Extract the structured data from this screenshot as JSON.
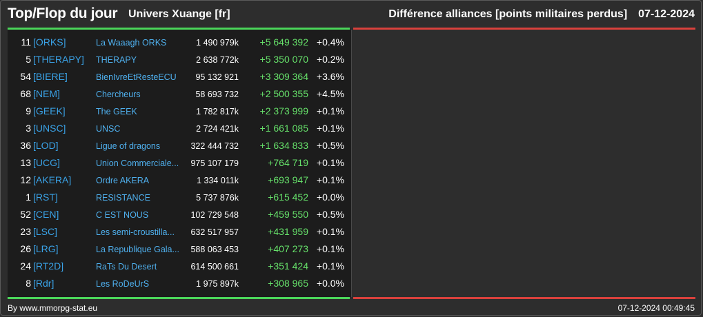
{
  "header": {
    "title": "Top/Flop du jour",
    "universe": "Univers Xuange [fr]",
    "metric": "Différence alliances [points militaires perdus]",
    "date": "07-12-2024"
  },
  "colors": {
    "positive": "#66e06a",
    "tag": "#3aa3e8",
    "top_bar": "#4bd65a",
    "flop_bar": "#d9413c"
  },
  "rows": [
    {
      "rank": "11",
      "tag": "[ORKS]",
      "name": "La Waaagh ORKS",
      "points": "1 490 979k",
      "diff": "+5 649 392",
      "pct": "+0.4%"
    },
    {
      "rank": "5",
      "tag": "[THERAPY]",
      "name": "THERAPY",
      "points": "2 638 772k",
      "diff": "+5 350 070",
      "pct": "+0.2%"
    },
    {
      "rank": "54",
      "tag": "[BIERE]",
      "name": "BienIvreEtResteECU",
      "points": "95 132 921",
      "diff": "+3 309 364",
      "pct": "+3.6%"
    },
    {
      "rank": "68",
      "tag": "[NEM]",
      "name": "Chercheurs",
      "points": "58 693 732",
      "diff": "+2 500 355",
      "pct": "+4.5%"
    },
    {
      "rank": "9",
      "tag": "[GEEK]",
      "name": "The GEEK",
      "points": "1 782 817k",
      "diff": "+2 373 999",
      "pct": "+0.1%"
    },
    {
      "rank": "3",
      "tag": "[UNSC]",
      "name": "UNSC",
      "points": "2 724 421k",
      "diff": "+1 661 085",
      "pct": "+0.1%"
    },
    {
      "rank": "36",
      "tag": "[LOD]",
      "name": "Ligue of dragons",
      "points": "322 444 732",
      "diff": "+1 634 833",
      "pct": "+0.5%"
    },
    {
      "rank": "13",
      "tag": "[UCG]",
      "name": "Union Commerciale...",
      "points": "975 107 179",
      "diff": "+764 719",
      "pct": "+0.1%"
    },
    {
      "rank": "12",
      "tag": "[AKERA]",
      "name": "Ordre AKERA",
      "points": "1 334 011k",
      "diff": "+693 947",
      "pct": "+0.1%"
    },
    {
      "rank": "1",
      "tag": "[RST]",
      "name": "RESISTANCE",
      "points": "5 737 876k",
      "diff": "+615 452",
      "pct": "+0.0%"
    },
    {
      "rank": "52",
      "tag": "[CEN]",
      "name": "C EST NOUS",
      "points": "102 729 548",
      "diff": "+459 550",
      "pct": "+0.5%"
    },
    {
      "rank": "23",
      "tag": "[LSC]",
      "name": "Les semi-croustilla...",
      "points": "632 517 957",
      "diff": "+431 959",
      "pct": "+0.1%"
    },
    {
      "rank": "26",
      "tag": "[LRG]",
      "name": "La Republique Gala...",
      "points": "588 063 453",
      "diff": "+407 273",
      "pct": "+0.1%"
    },
    {
      "rank": "24",
      "tag": "[RT2D]",
      "name": "RaTs Du Desert",
      "points": "614 500 661",
      "diff": "+351 424",
      "pct": "+0.1%"
    },
    {
      "rank": "8",
      "tag": "[Rdr]",
      "name": "Les RoDeUrS",
      "points": "1 975 897k",
      "diff": "+308 965",
      "pct": "+0.0%"
    }
  ],
  "footer": {
    "credit": "By www.mmorpg-stat.eu",
    "timestamp": "07-12-2024 00:49:45"
  }
}
